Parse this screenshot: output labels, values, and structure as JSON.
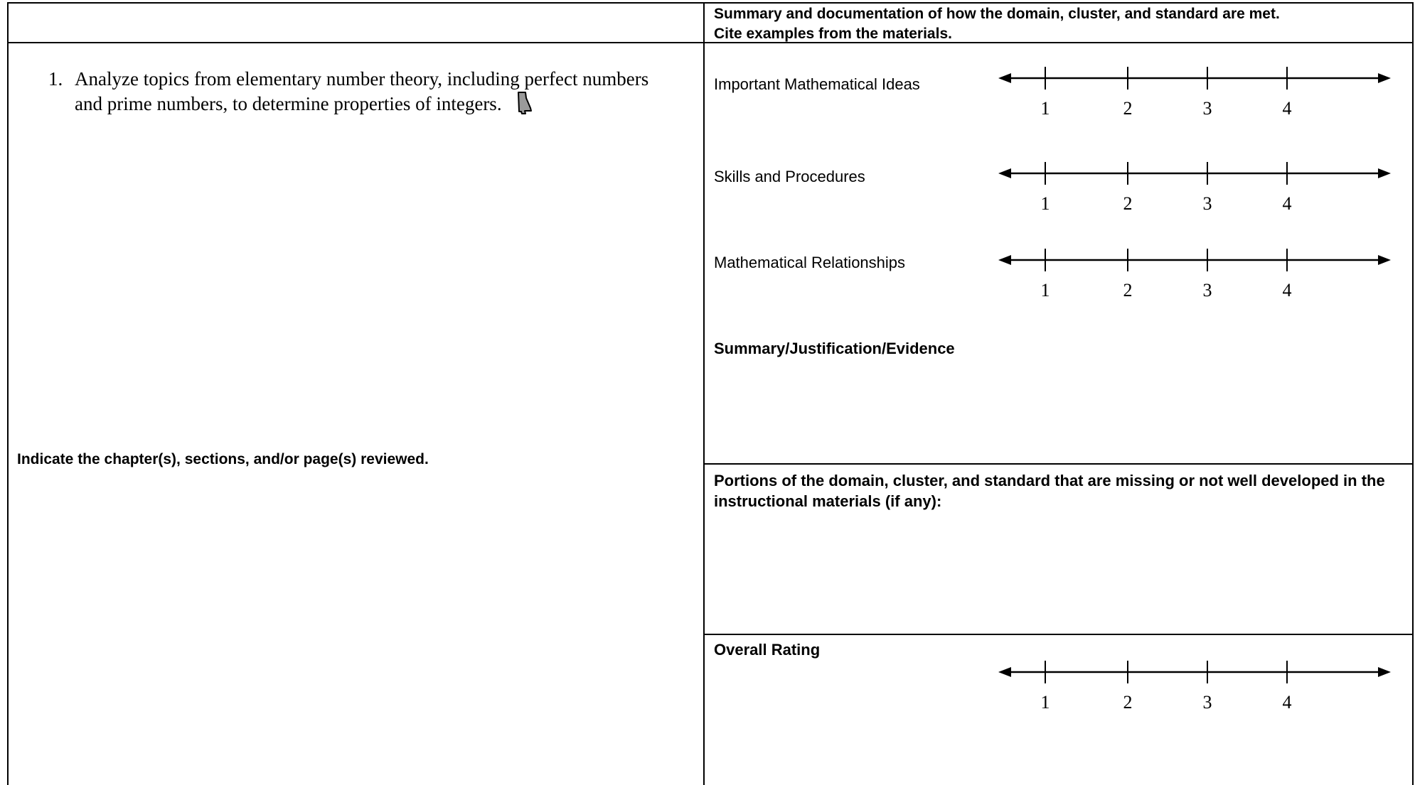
{
  "header": {
    "right_title_line1": "Summary and documentation of how the domain, cluster, and standard are met.",
    "right_title_line2": "Cite examples from the materials."
  },
  "standard": {
    "number": "1.",
    "text": "Analyze topics from elementary number theory, including perfect numbers and prime numbers, to determine properties of integers.",
    "icon": "alabama-state-icon"
  },
  "left": {
    "indicate_label": "Indicate the chapter(s), sections, and/or page(s) reviewed."
  },
  "ratings": [
    {
      "label": "Important Mathematical Ideas"
    },
    {
      "label": "Skills and Procedures"
    },
    {
      "label": "Mathematical Relationships"
    }
  ],
  "scale_ticks": [
    "1",
    "2",
    "3",
    "4"
  ],
  "summary_label": "Summary/Justification/Evidence",
  "portions_label": "Portions of the domain, cluster, and standard that are missing or not well developed in the instructional materials (if any):",
  "overall_label": "Overall Rating"
}
